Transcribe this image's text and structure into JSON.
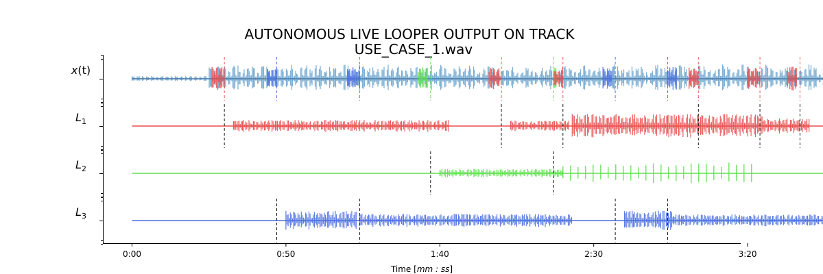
{
  "chart_data": {
    "type": "line",
    "title_line1": "AUTONOMOUS LIVE LOOPER OUTPUT ON TRACK",
    "title_line2": "USE_CASE_1.wav",
    "xlabel_prefix": "Time [",
    "xlabel_math": "mm : ss",
    "xlabel_suffix": "]",
    "xlim": [
      -18,
      223
    ],
    "x_ticks": [
      {
        "value": 0,
        "label": "0:00"
      },
      {
        "value": 50,
        "label": "0:50"
      },
      {
        "value": 100,
        "label": "1:40"
      },
      {
        "value": 150,
        "label": "2:30"
      },
      {
        "value": 200,
        "label": "3:20"
      }
    ],
    "colors": {
      "input": "#7fb0d4",
      "input_baseline": "#4a78a8",
      "L1": "#e84b4b",
      "L2": "#5ee04f",
      "L3": "#4a6fe0",
      "boundary_dark": "#000000"
    },
    "rows": [
      {
        "id": "x",
        "label_main": "x",
        "label_paren": "(t)",
        "subscript": "",
        "color_key": "input",
        "t_start": 0,
        "t_end": 227,
        "amplitude": 0.75,
        "overlay_segments": [
          {
            "from": 26,
            "to": 30,
            "color_key": "L1"
          },
          {
            "from": 44,
            "to": 47,
            "color_key": "L3"
          },
          {
            "from": 70,
            "to": 74,
            "color_key": "L3"
          },
          {
            "from": 93,
            "to": 96,
            "color_key": "L2"
          },
          {
            "from": 116,
            "to": 120,
            "color_key": "L1"
          },
          {
            "from": 137,
            "to": 138,
            "color_key": "L2"
          },
          {
            "from": 137,
            "to": 140,
            "color_key": "L1"
          },
          {
            "from": 153,
            "to": 156,
            "color_key": "L3"
          },
          {
            "from": 174,
            "to": 177,
            "color_key": "L3"
          },
          {
            "from": 181,
            "to": 184,
            "color_key": "L1"
          },
          {
            "from": 200,
            "to": 204,
            "color_key": "L1"
          },
          {
            "from": 213,
            "to": 216,
            "color_key": "L1"
          }
        ],
        "boundaries": [
          {
            "t": 30,
            "color_key": "L1"
          },
          {
            "t": 47,
            "color_key": "L3"
          },
          {
            "t": 74,
            "color_key": "L3"
          },
          {
            "t": 97,
            "color_key": "L2"
          },
          {
            "t": 120,
            "color_key": "L1"
          },
          {
            "t": 137,
            "color_key": "L2"
          },
          {
            "t": 140,
            "color_key": "L1"
          },
          {
            "t": 157,
            "color_key": "L3"
          },
          {
            "t": 174,
            "color_key": "L3"
          },
          {
            "t": 184,
            "color_key": "L1"
          },
          {
            "t": 204,
            "color_key": "L1"
          },
          {
            "t": 217,
            "color_key": "L1"
          }
        ]
      },
      {
        "id": "L1",
        "label_main": "L",
        "label_paren": "",
        "subscript": "1",
        "color_key": "L1",
        "segments": [
          {
            "from": 33,
            "to": 103,
            "amplitude": 0.28
          },
          {
            "from": 123,
            "to": 142,
            "amplitude": 0.25
          },
          {
            "from": 143,
            "to": 205,
            "amplitude": 0.55
          },
          {
            "from": 205,
            "to": 220,
            "amplitude": 0.35
          }
        ],
        "boundaries": [
          {
            "t": 30,
            "color_key": "boundary_dark"
          },
          {
            "t": 120,
            "color_key": "boundary_dark"
          },
          {
            "t": 140,
            "color_key": "boundary_dark"
          },
          {
            "t": 184,
            "color_key": "boundary_dark"
          },
          {
            "t": 204,
            "color_key": "boundary_dark"
          },
          {
            "t": 217,
            "color_key": "boundary_dark"
          }
        ]
      },
      {
        "id": "L2",
        "label_main": "L",
        "label_paren": "",
        "subscript": "2",
        "color_key": "L2",
        "segments": [
          {
            "from": 100,
            "to": 140,
            "amplitude": 0.2
          },
          {
            "from": 140,
            "to": 203,
            "amplitude": 0.5,
            "sparse": true
          }
        ],
        "boundaries": [
          {
            "t": 97,
            "color_key": "boundary_dark"
          },
          {
            "t": 137,
            "color_key": "boundary_dark"
          }
        ]
      },
      {
        "id": "L3",
        "label_main": "L",
        "label_paren": "",
        "subscript": "3",
        "color_key": "L3",
        "segments": [
          {
            "from": 50,
            "to": 73,
            "amplitude": 0.45
          },
          {
            "from": 74,
            "to": 143,
            "amplitude": 0.3
          },
          {
            "from": 160,
            "to": 176,
            "amplitude": 0.45
          },
          {
            "from": 176,
            "to": 225,
            "amplitude": 0.28
          }
        ],
        "boundaries": [
          {
            "t": 47,
            "color_key": "boundary_dark"
          },
          {
            "t": 74,
            "color_key": "boundary_dark"
          },
          {
            "t": 157,
            "color_key": "boundary_dark"
          },
          {
            "t": 174,
            "color_key": "boundary_dark"
          }
        ]
      }
    ]
  }
}
